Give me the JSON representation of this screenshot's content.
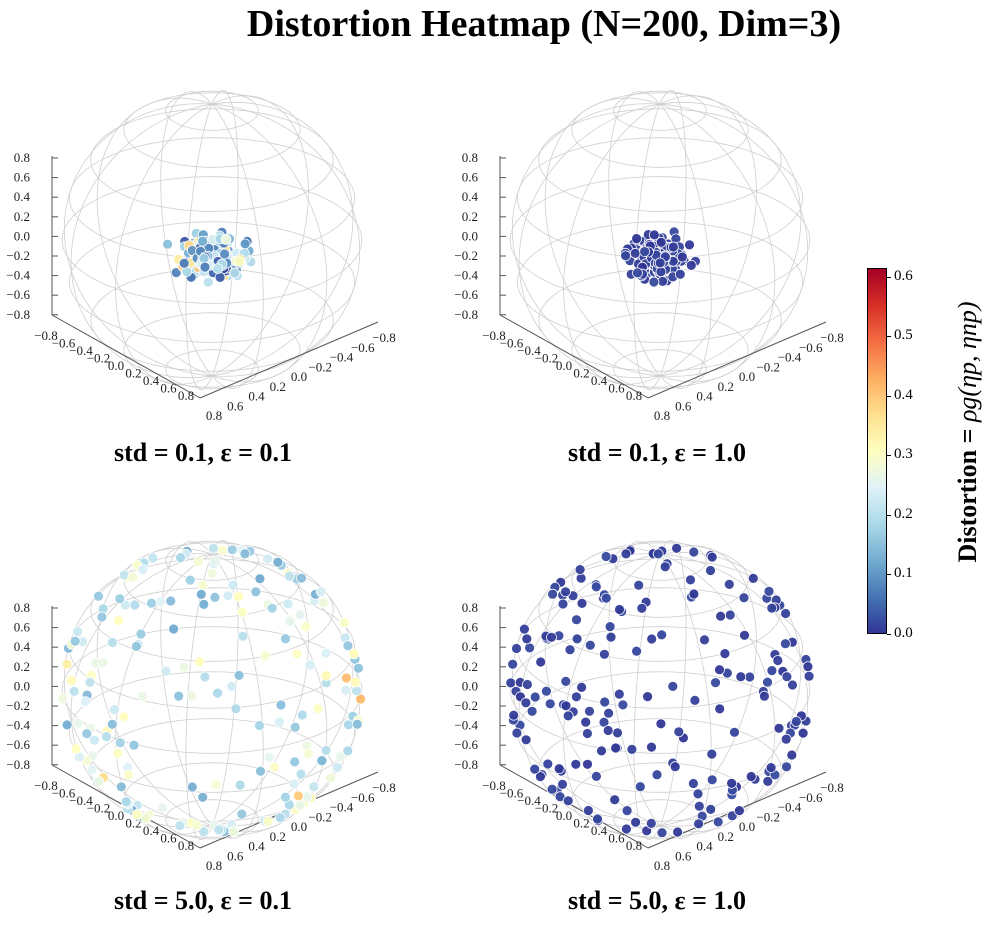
{
  "title": "Distortion Heatmap (N=200, Dim=3)",
  "colorbar": {
    "label_prefix": "Distortion = ",
    "label_math": "ρg(ηp, ηnp)",
    "min": 0.0,
    "max": 0.6,
    "ticks": [
      "0.0",
      "0.1",
      "0.2",
      "0.3",
      "0.4",
      "0.5",
      "0.6"
    ]
  },
  "axis_ticks": {
    "z": [
      "0.8",
      "0.6",
      "0.4",
      "0.2",
      "0.0",
      "−0.2",
      "−0.4",
      "−0.6",
      "−0.8"
    ],
    "x": [
      "−0.8",
      "−0.6",
      "−0.4",
      "−0.2",
      "0.0",
      "0.2",
      "0.4",
      "0.6",
      "0.8"
    ],
    "y": [
      "0.8",
      "0.6",
      "0.4",
      "0.2",
      "0.0",
      "−0.2",
      "−0.4",
      "−0.6",
      "−0.8"
    ]
  },
  "chart_data": [
    {
      "type": "scatter",
      "title": "std = 0.1, ε = 0.1",
      "std": 0.1,
      "epsilon": 0.1,
      "n": 200,
      "dim": 3,
      "distortion_range": [
        0.0,
        0.6
      ]
    },
    {
      "type": "scatter",
      "title": "std = 0.1, ε = 1.0",
      "std": 0.1,
      "epsilon": 1.0,
      "n": 200,
      "dim": 3,
      "distortion_range": [
        0.0,
        0.02
      ]
    },
    {
      "type": "scatter",
      "title": "std = 5.0, ε = 0.1",
      "std": 5.0,
      "epsilon": 0.1,
      "n": 200,
      "dim": 3,
      "distortion_range": [
        0.0,
        0.45
      ]
    },
    {
      "type": "scatter",
      "title": "std = 5.0, ε = 1.0",
      "std": 5.0,
      "epsilon": 1.0,
      "n": 200,
      "dim": 3,
      "distortion_range": [
        0.0,
        0.02
      ]
    }
  ]
}
